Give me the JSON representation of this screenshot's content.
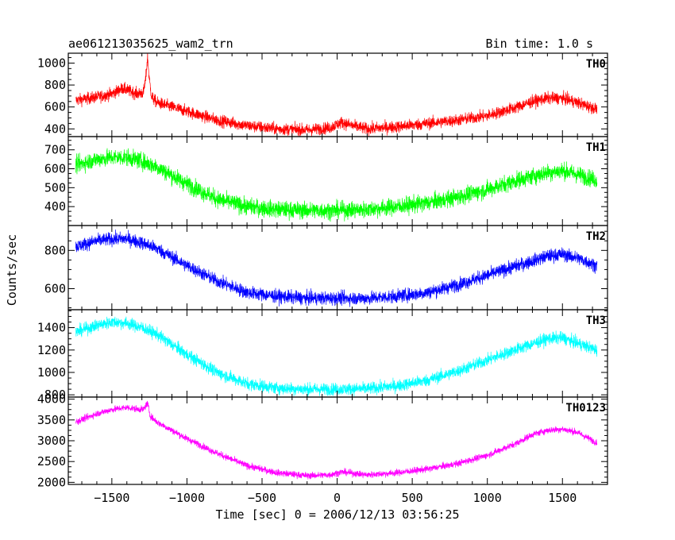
{
  "header": {
    "title": "ae061213035625_wam2_trn",
    "bin_time": "Bin time: 1.0 s"
  },
  "chart_data": {
    "type": "line",
    "xlabel": "Time [sec] 0 = 2006/12/13 03:56:25",
    "ylabel": "Counts/sec",
    "xlim": [
      -1790,
      1800
    ],
    "xticks": [
      -1500,
      -1000,
      -500,
      0,
      500,
      1000,
      1500
    ],
    "x_range": [
      -1740,
      1730
    ],
    "panels": [
      {
        "name": "TH0",
        "color": "#ff0000",
        "ylim": [
          330,
          1090
        ],
        "yticks": [
          400,
          600,
          800,
          1000
        ],
        "noise": 55,
        "x": [
          -1740,
          -1600,
          -1500,
          -1430,
          -1380,
          -1330,
          -1290,
          -1275,
          -1262,
          -1252,
          -1235,
          -1200,
          -1000,
          -800,
          -600,
          -400,
          -200,
          -50,
          30,
          100,
          200,
          400,
          600,
          800,
          1000,
          1200,
          1300,
          1400,
          1500,
          1600,
          1730
        ],
        "y": [
          660,
          690,
          720,
          770,
          745,
          720,
          730,
          850,
          1060,
          870,
          690,
          640,
          560,
          480,
          430,
          400,
          390,
          410,
          460,
          430,
          400,
          420,
          450,
          480,
          520,
          600,
          650,
          680,
          680,
          640,
          580
        ]
      },
      {
        "name": "TH1",
        "color": "#00ff00",
        "ylim": [
          300,
          770
        ],
        "yticks": [
          400,
          500,
          600,
          700
        ],
        "noise": 45,
        "x": [
          -1740,
          -1600,
          -1500,
          -1400,
          -1300,
          -1200,
          -1000,
          -800,
          -600,
          -400,
          -200,
          0,
          200,
          400,
          600,
          800,
          1000,
          1200,
          1400,
          1500,
          1600,
          1730
        ],
        "y": [
          620,
          650,
          660,
          660,
          640,
          610,
          520,
          440,
          400,
          385,
          380,
          380,
          385,
          400,
          420,
          450,
          490,
          540,
          580,
          590,
          570,
          540
        ]
      },
      {
        "name": "TH2",
        "color": "#0000ff",
        "ylim": [
          490,
          930
        ],
        "yticks": [
          600,
          800
        ],
        "noise": 35,
        "x": [
          -1740,
          -1600,
          -1500,
          -1400,
          -1300,
          -1200,
          -1000,
          -800,
          -600,
          -400,
          -200,
          0,
          200,
          400,
          600,
          800,
          1000,
          1200,
          1400,
          1500,
          1600,
          1730
        ],
        "y": [
          820,
          850,
          860,
          860,
          840,
          810,
          720,
          640,
          580,
          560,
          550,
          550,
          550,
          560,
          580,
          620,
          670,
          720,
          770,
          780,
          760,
          720
        ]
      },
      {
        "name": "TH3",
        "color": "#00ffff",
        "ylim": [
          780,
          1560
        ],
        "yticks": [
          800,
          1000,
          1200,
          1400
        ],
        "noise": 55,
        "x": [
          -1740,
          -1600,
          -1500,
          -1400,
          -1300,
          -1200,
          -1000,
          -800,
          -600,
          -400,
          -200,
          0,
          200,
          400,
          600,
          800,
          1000,
          1200,
          1400,
          1500,
          1600,
          1730
        ],
        "y": [
          1360,
          1420,
          1450,
          1440,
          1400,
          1340,
          1160,
          1000,
          900,
          860,
          850,
          850,
          855,
          880,
          930,
          1010,
          1110,
          1210,
          1300,
          1310,
          1260,
          1200
        ]
      },
      {
        "name": "TH0123",
        "color": "#ff00ff",
        "ylim": [
          1950,
          4050
        ],
        "yticks": [
          2000,
          2500,
          3000,
          3500,
          4000
        ],
        "noise": 80,
        "x": [
          -1740,
          -1600,
          -1500,
          -1400,
          -1330,
          -1290,
          -1272,
          -1262,
          -1245,
          -1200,
          -1000,
          -800,
          -600,
          -400,
          -200,
          -50,
          30,
          100,
          200,
          400,
          600,
          800,
          1000,
          1200,
          1300,
          1400,
          1500,
          1600,
          1730
        ],
        "y": [
          3450,
          3650,
          3750,
          3800,
          3760,
          3750,
          3850,
          3900,
          3600,
          3450,
          3050,
          2700,
          2400,
          2230,
          2160,
          2180,
          2250,
          2220,
          2180,
          2230,
          2320,
          2450,
          2650,
          2950,
          3150,
          3250,
          3280,
          3200,
          2950
        ]
      }
    ]
  }
}
